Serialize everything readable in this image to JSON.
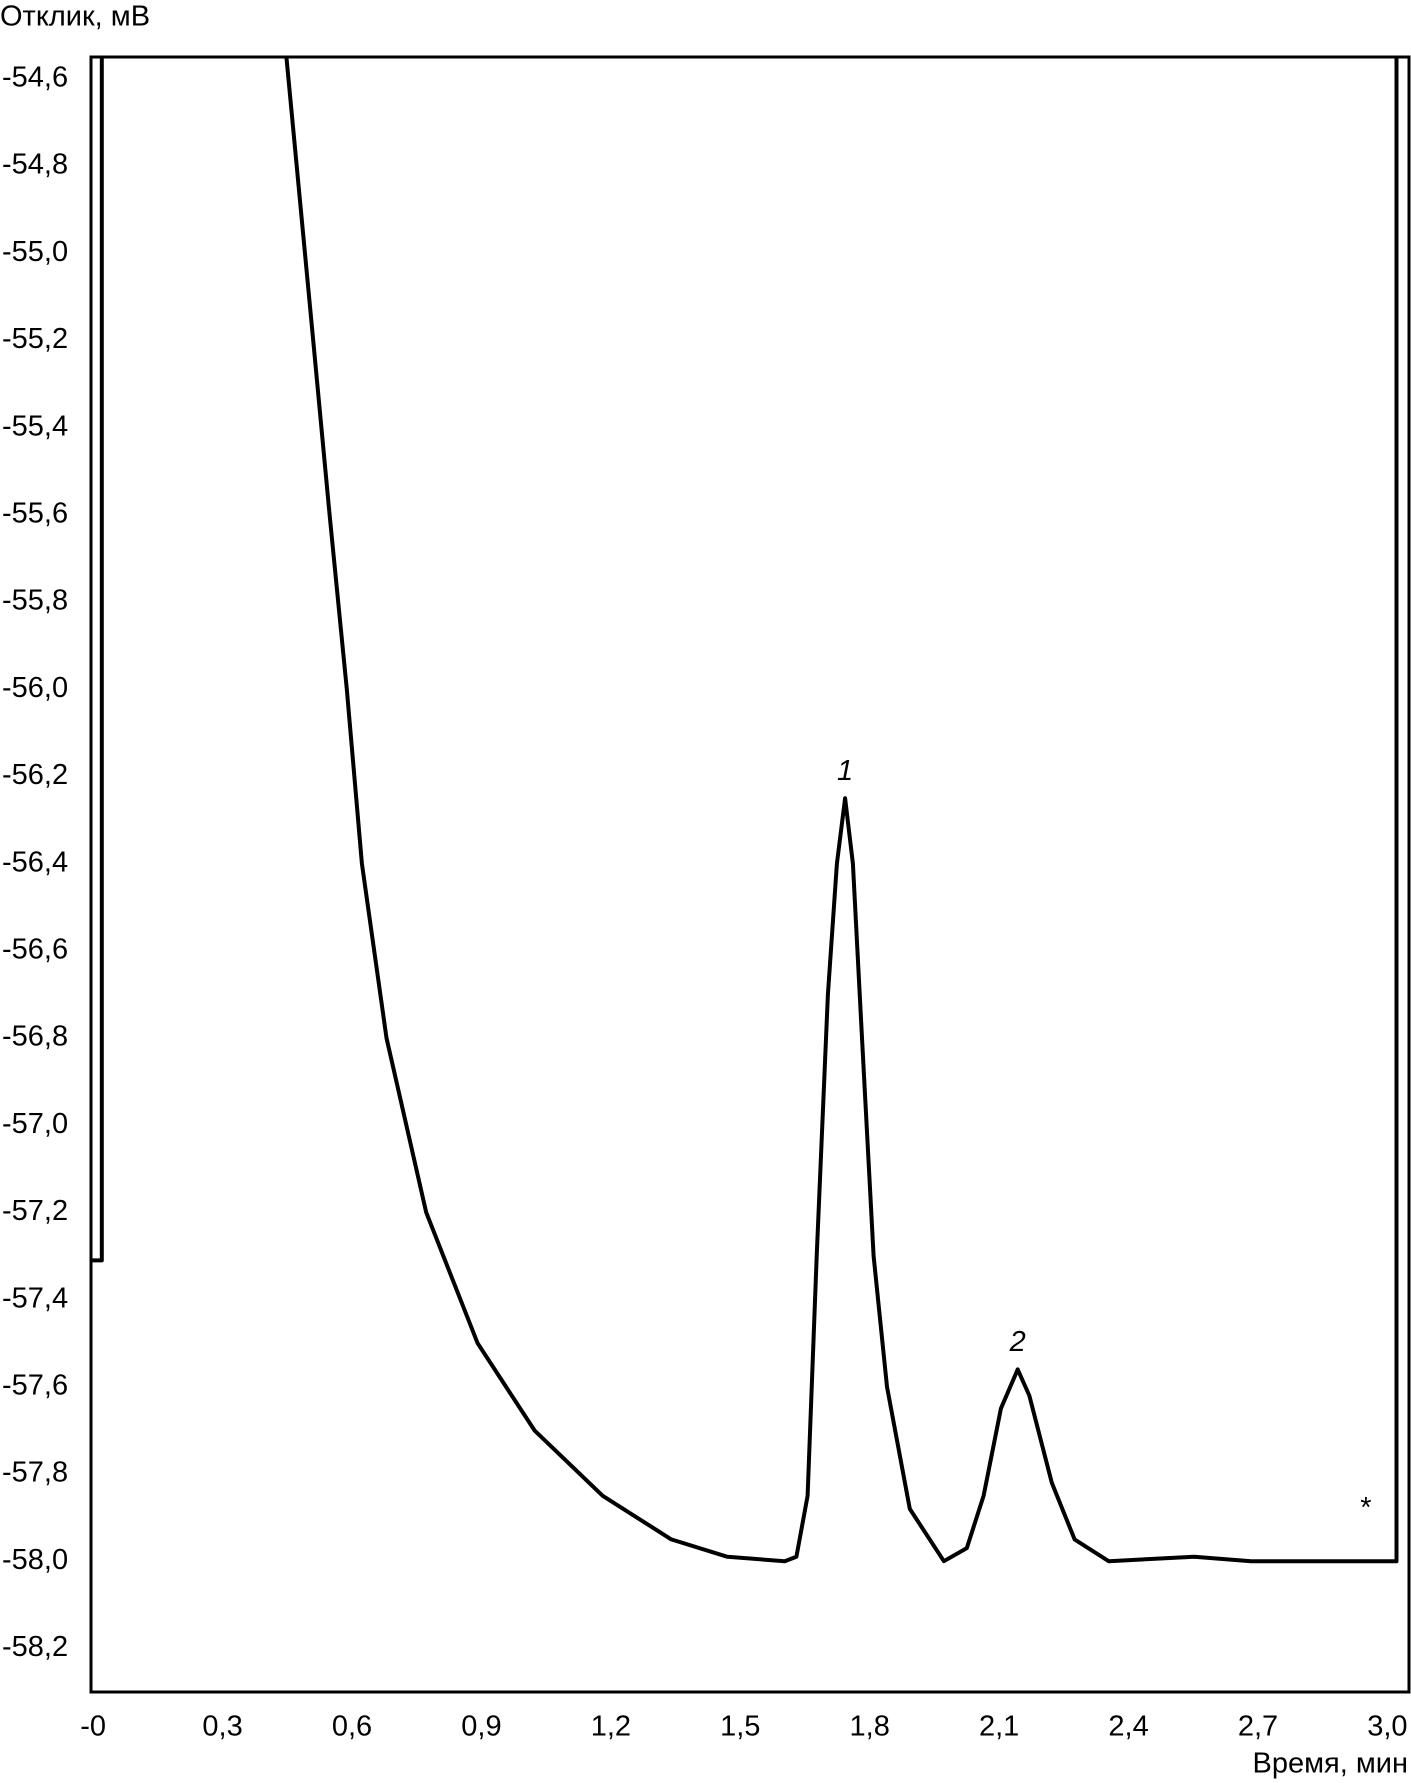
{
  "chart_data": {
    "type": "line",
    "ylabel": "Отклик, мВ",
    "xlabel": "Время, мин",
    "xlim": [
      -0.005,
      3.05
    ],
    "ylim": [
      -58.3,
      -54.55
    ],
    "xticks": [
      {
        "value": 0,
        "label": "-0"
      },
      {
        "value": 0.3,
        "label": "0,3"
      },
      {
        "value": 0.6,
        "label": "0,6"
      },
      {
        "value": 0.9,
        "label": "0,9"
      },
      {
        "value": 1.2,
        "label": "1,2"
      },
      {
        "value": 1.5,
        "label": "1,5"
      },
      {
        "value": 1.8,
        "label": "1,8"
      },
      {
        "value": 2.1,
        "label": "2,1"
      },
      {
        "value": 2.4,
        "label": "2,4"
      },
      {
        "value": 2.7,
        "label": "2,7"
      },
      {
        "value": 3.0,
        "label": "3,0"
      }
    ],
    "yticks": [
      {
        "value": -54.6,
        "label": "-54,6"
      },
      {
        "value": -54.8,
        "label": "-54,8"
      },
      {
        "value": -55.0,
        "label": "-55,0"
      },
      {
        "value": -55.2,
        "label": "-55,2"
      },
      {
        "value": -55.4,
        "label": "-55,4"
      },
      {
        "value": -55.6,
        "label": "-55,6"
      },
      {
        "value": -55.8,
        "label": "-55,8"
      },
      {
        "value": -56.0,
        "label": "-56,0"
      },
      {
        "value": -56.2,
        "label": "-56,2"
      },
      {
        "value": -56.4,
        "label": "-56,4"
      },
      {
        "value": -56.6,
        "label": "-56,6"
      },
      {
        "value": -56.8,
        "label": "-56,8"
      },
      {
        "value": -57.0,
        "label": "-57,0"
      },
      {
        "value": -57.2,
        "label": "-57,2"
      },
      {
        "value": -57.4,
        "label": "-57,4"
      },
      {
        "value": -57.6,
        "label": "-57,6"
      },
      {
        "value": -57.8,
        "label": "-57,8"
      },
      {
        "value": -58.0,
        "label": "-58,0"
      },
      {
        "value": -58.2,
        "label": "-58,2"
      }
    ],
    "grid": false,
    "series": [
      {
        "color": "#000000",
        "x": [
          -0.005,
          0.02,
          0.02,
          0.2,
          0.448,
          0.51,
          0.548,
          0.588,
          0.623,
          0.68,
          0.772,
          0.891,
          1.023,
          1.181,
          1.34,
          1.47,
          1.603,
          1.63,
          1.656,
          1.677,
          1.703,
          1.724,
          1.743,
          1.761,
          1.782,
          1.809,
          1.84,
          1.893,
          1.972,
          2.025,
          2.064,
          2.104,
          2.143,
          2.17,
          2.222,
          2.275,
          2.354,
          2.552,
          2.684,
          2.895,
          3.013,
          3.021,
          3.021
        ],
        "values": [
          -57.31,
          -57.31,
          -54.55,
          null,
          -54.55,
          -55.2,
          -55.6,
          -56.0,
          -56.4,
          -56.8,
          -57.2,
          -57.5,
          -57.7,
          -57.85,
          -57.95,
          -57.99,
          -58.0,
          -57.99,
          -57.85,
          -57.3,
          -56.7,
          -56.4,
          -56.25,
          -56.4,
          -56.8,
          -57.3,
          -57.6,
          -57.88,
          -58.0,
          -57.97,
          -57.85,
          -57.65,
          -57.56,
          -57.62,
          -57.82,
          -57.95,
          -58.0,
          -57.99,
          -58.0,
          -58.0,
          -58.0,
          -58.0,
          -54.55
        ]
      }
    ],
    "annotations": [
      {
        "text": "1",
        "x": 1.743,
        "y": -56.25
      },
      {
        "text": "2",
        "x": 2.143,
        "y": -57.56
      },
      {
        "text": "*",
        "x": 2.95,
        "y": -57.95
      }
    ]
  }
}
